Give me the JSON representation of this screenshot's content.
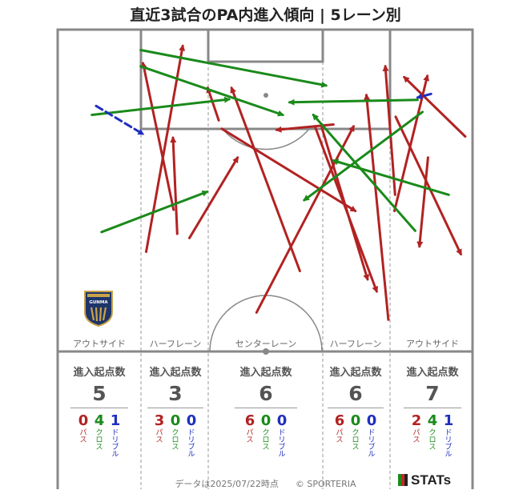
{
  "title": "直近3試合のPA内進入傾向 | 5レーン別",
  "footer": {
    "date_text": "データは2025/07/22時点",
    "copyright": "© SPORTERIA",
    "brand": "STATs"
  },
  "logo": {
    "text": "GUNMA",
    "icon": "club-crest-icon"
  },
  "legend_labels": {
    "pass": "パス",
    "cross": "クロス",
    "dribble": "ドリブル"
  },
  "colors": {
    "pass": "#b22222",
    "cross": "#1a8a1a",
    "dribble": "#1f2fbf",
    "pitch_line": "#888888"
  },
  "lanes": [
    {
      "name": "アウトサイド",
      "header": "進入起点数",
      "total": 5,
      "pass": 0,
      "cross": 4,
      "dribble": 1
    },
    {
      "name": "ハーフレーン",
      "header": "進入起点数",
      "total": 3,
      "pass": 3,
      "cross": 0,
      "dribble": 0
    },
    {
      "name": "センターレーン",
      "header": "進入起点数",
      "total": 6,
      "pass": 6,
      "cross": 0,
      "dribble": 0
    },
    {
      "name": "ハーフレーン",
      "header": "進入起点数",
      "total": 6,
      "pass": 6,
      "cross": 0,
      "dribble": 0
    },
    {
      "name": "アウトサイド",
      "header": "進入起点数",
      "total": 7,
      "pass": 2,
      "cross": 4,
      "dribble": 1
    }
  ],
  "chart_data": {
    "type": "scatter",
    "title": "直近3試合のPA内進入傾向 | 5レーン別",
    "xlabel": "",
    "ylabel": "",
    "xlim": [
      0,
      68
    ],
    "ylim": [
      0,
      42
    ],
    "arrows": [
      {
        "type": "pass",
        "x0": 19.0,
        "y0": 30.0,
        "x1": 14.0,
        "y1": 5.6
      },
      {
        "type": "pass",
        "x0": 14.5,
        "y0": 37.0,
        "x1": 20.5,
        "y1": 2.7
      },
      {
        "type": "pass",
        "x0": 19.6,
        "y0": 34.0,
        "x1": 18.9,
        "y1": 18.0
      },
      {
        "type": "pass",
        "x0": 21.6,
        "y0": 34.7,
        "x1": 29.5,
        "y1": 21.3
      },
      {
        "type": "pass",
        "x0": 39.7,
        "y0": 40.2,
        "x1": 28.5,
        "y1": 9.7
      },
      {
        "type": "pass",
        "x0": 26.4,
        "y0": 15.1,
        "x1": 24.6,
        "y1": 9.7
      },
      {
        "type": "pass",
        "x0": 32.6,
        "y0": 47.1,
        "x1": 48.5,
        "y1": 16.1
      },
      {
        "type": "pass",
        "x0": 26.9,
        "y0": 16.5,
        "x1": 48.8,
        "y1": 30.2
      },
      {
        "type": "pass",
        "x0": 45.2,
        "y0": 15.8,
        "x1": 35.9,
        "y1": 16.7
      },
      {
        "type": "pass",
        "x0": 42.2,
        "y0": 16.2,
        "x1": 52.3,
        "y1": 43.6
      },
      {
        "type": "pass",
        "x0": 55.4,
        "y0": 14.5,
        "x1": 66.1,
        "y1": 37.4
      },
      {
        "type": "pass",
        "x0": 66.8,
        "y0": 17.8,
        "x1": 56.8,
        "y1": 7.9
      },
      {
        "type": "pass",
        "x0": 60.7,
        "y0": 21.3,
        "x1": 59.3,
        "y1": 36.1
      },
      {
        "type": "pass",
        "x0": 55.2,
        "y0": 30.2,
        "x1": 60.6,
        "y1": 7.7
      },
      {
        "type": "pass",
        "x0": 43.3,
        "y0": 16.3,
        "x1": 50.8,
        "y1": 41.6
      },
      {
        "type": "pass",
        "x0": 55.3,
        "y0": 27.5,
        "x1": 53.7,
        "y1": 6.1
      },
      {
        "type": "pass",
        "x0": 54.2,
        "y0": 48.3,
        "x1": 50.6,
        "y1": 10.9
      },
      {
        "type": "cross",
        "x0": 5.6,
        "y0": 14.2,
        "x1": 28.1,
        "y1": 11.6
      },
      {
        "type": "cross",
        "x0": 7.2,
        "y0": 33.7,
        "x1": 24.5,
        "y1": 27.0
      },
      {
        "type": "cross",
        "x0": 13.6,
        "y0": 6.1,
        "x1": 36.9,
        "y1": 14.2
      },
      {
        "type": "cross",
        "x0": 13.6,
        "y0": 3.4,
        "x1": 44.0,
        "y1": 9.3
      },
      {
        "type": "cross",
        "x0": 59.0,
        "y0": 11.7,
        "x1": 38.0,
        "y1": 12.1
      },
      {
        "type": "cross",
        "x0": 59.8,
        "y0": 13.7,
        "x1": 40.4,
        "y1": 28.4
      },
      {
        "type": "cross",
        "x0": 58.6,
        "y0": 33.5,
        "x1": 41.9,
        "y1": 14.2
      },
      {
        "type": "cross",
        "x0": 64.1,
        "y0": 27.5,
        "x1": 45.2,
        "y1": 21.8
      },
      {
        "type": "dribble",
        "x0": 6.3,
        "y0": 12.7,
        "x1": 14.0,
        "y1": 17.4
      },
      {
        "type": "dribble",
        "x0": 61.2,
        "y0": 10.7,
        "x1": 59.0,
        "y1": 11.3
      }
    ]
  }
}
